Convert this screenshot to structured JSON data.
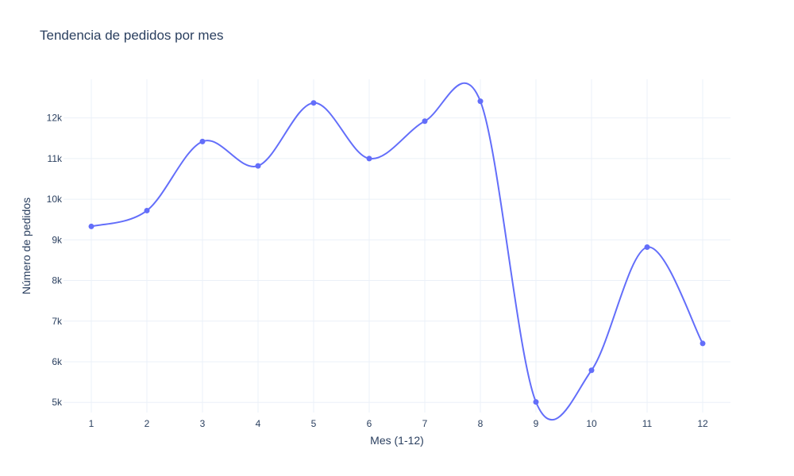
{
  "chart_data": {
    "type": "line",
    "title": "Tendencia de pedidos por mes",
    "xlabel": "Mes (1-12)",
    "ylabel": "Número de pedidos",
    "x": [
      1,
      2,
      3,
      4,
      5,
      6,
      7,
      8,
      9,
      10,
      11,
      12
    ],
    "series": [
      {
        "values": [
          9330,
          9720,
          11420,
          10820,
          12370,
          11000,
          11920,
          12410,
          5010,
          5790,
          8820,
          6450
        ],
        "color": "#636efa"
      }
    ],
    "xlim": [
      0.5,
      12.5
    ],
    "ylim": [
      4750,
      12950
    ],
    "x_ticks": [
      1,
      2,
      3,
      4,
      5,
      6,
      7,
      8,
      9,
      10,
      11,
      12
    ],
    "x_tick_labels": [
      "1",
      "2",
      "3",
      "4",
      "5",
      "6",
      "7",
      "8",
      "9",
      "10",
      "11",
      "12"
    ],
    "y_ticks": [
      5000,
      6000,
      7000,
      8000,
      9000,
      10000,
      11000,
      12000
    ],
    "y_tick_labels": [
      "5k",
      "6k",
      "7k",
      "8k",
      "9k",
      "10k",
      "11k",
      "12k"
    ],
    "grid": true,
    "legend": false,
    "line_shape": "spline",
    "markers": true
  }
}
